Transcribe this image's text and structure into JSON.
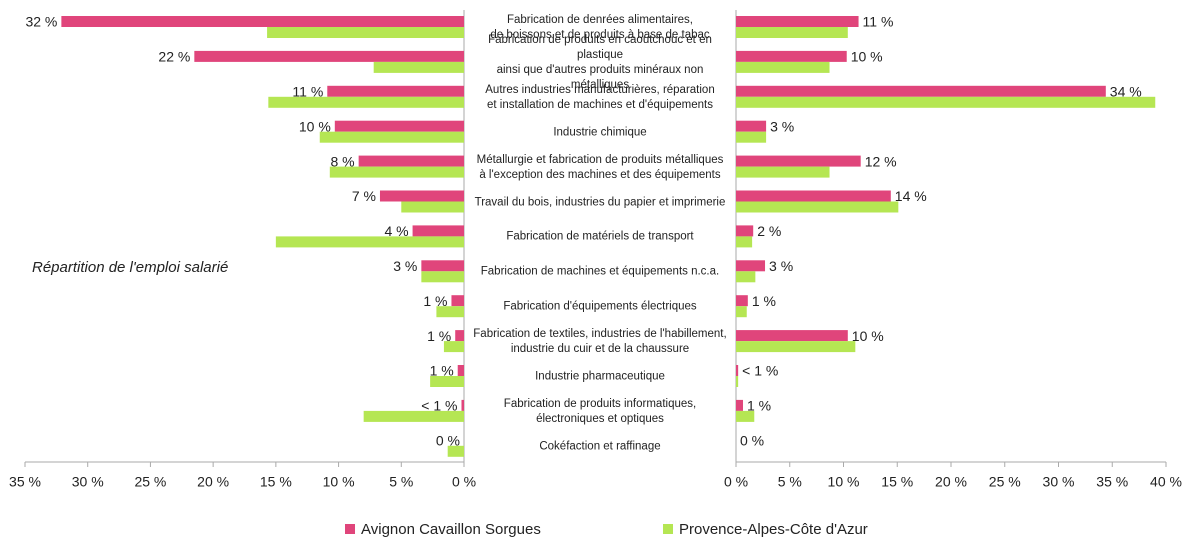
{
  "chart_data": [
    {
      "type": "bar",
      "orientation": "horizontal",
      "reversed": true,
      "title": "Répartition de l'emploi salarié",
      "categories": [
        "Fabrication de denrées alimentaires,\nde boissons et de produits à base de tabac",
        "Fabrication de produits en caoutchouc et en plastique\nainsi que d'autres produits minéraux non métalliques",
        "Autres industries manufacturières, réparation\net installation de machines et d'équipements",
        "Industrie chimique",
        "Métallurgie et fabrication de produits métalliques\nà l'exception des machines et des équipements",
        "Travail du bois, industries du papier et imprimerie",
        "Fabrication de matériels de transport",
        "Fabrication de machines et équipements n.c.a.",
        "Fabrication d'équipements électriques",
        "Fabrication de textiles, industries de l'habillement,\nindustrie du cuir et de la chaussure",
        "Industrie pharmaceutique",
        "Fabrication de produits informatiques,\nélectroniques et optiques",
        "Cokéfaction et raffinage"
      ],
      "series": [
        {
          "name": "Avignon Cavaillon Sorgues",
          "color": "#e0457b",
          "values": [
            32.1,
            21.5,
            10.9,
            10.3,
            8.4,
            6.7,
            4.1,
            3.4,
            1.0,
            0.7,
            0.5,
            0.2,
            0
          ],
          "value_labels": [
            "32 %",
            "22 %",
            "11 %",
            "10 %",
            "8 %",
            "7 %",
            "4 %",
            "3 %",
            "1 %",
            "1 %",
            "1 %",
            "< 1 %",
            "0 %"
          ]
        },
        {
          "name": "Provence-Alpes-Côte d'Azur",
          "color": "#b5e653",
          "values": [
            15.7,
            7.2,
            15.6,
            11.5,
            10.7,
            5.0,
            15.0,
            3.4,
            2.2,
            1.6,
            2.7,
            8.0,
            1.3
          ]
        }
      ],
      "xlim": [
        0,
        35
      ],
      "xticks": [
        {
          "value": 35,
          "label": "35 %"
        },
        {
          "value": 30,
          "label": "30 %"
        },
        {
          "value": 25,
          "label": "25 %"
        },
        {
          "value": 20,
          "label": "20 %"
        },
        {
          "value": 15,
          "label": "15 %"
        },
        {
          "value": 10,
          "label": "10 %"
        },
        {
          "value": 5,
          "label": "5 %"
        },
        {
          "value": 0,
          "label": "0 %"
        }
      ]
    },
    {
      "type": "bar",
      "orientation": "horizontal",
      "reversed": false,
      "series": [
        {
          "color": "#e0457b",
          "values": [
            11.4,
            10.3,
            34.4,
            2.8,
            11.6,
            14.4,
            1.6,
            2.7,
            1.1,
            10.4,
            0.2,
            0.65,
            0
          ],
          "value_labels": [
            "11 %",
            "10 %",
            "34 %",
            "3 %",
            "12 %",
            "14 %",
            "2 %",
            "3 %",
            "1 %",
            "10 %",
            "< 1 %",
            "1 %",
            "0 %"
          ]
        },
        {
          "color": "#b5e653",
          "values": [
            10.4,
            8.7,
            39.0,
            2.8,
            8.7,
            15.1,
            1.5,
            1.8,
            1.0,
            11.1,
            0.2,
            1.7,
            0
          ]
        }
      ],
      "xlim": [
        0,
        40
      ],
      "xticks": [
        {
          "value": 0,
          "label": "0 %"
        },
        {
          "value": 5,
          "label": "5 %"
        },
        {
          "value": 10,
          "label": "10 %"
        },
        {
          "value": 15,
          "label": "15 %"
        },
        {
          "value": 20,
          "label": "20 %"
        },
        {
          "value": 25,
          "label": "25 %"
        },
        {
          "value": 30,
          "label": "30 %"
        },
        {
          "value": 35,
          "label": "35 %"
        },
        {
          "value": 40,
          "label": "40 %"
        }
      ]
    }
  ]
}
